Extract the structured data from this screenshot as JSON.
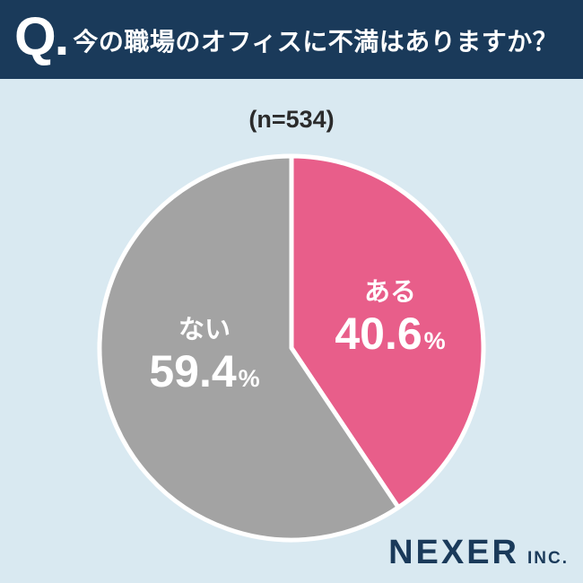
{
  "header": {
    "q_label": "Q.",
    "title": "今の職場のオフィスに不満はありますか？"
  },
  "chart_data": {
    "type": "pie",
    "title": "(n=534)",
    "start_angle_deg": 0,
    "direction": "clockwise",
    "percent_sign": "%",
    "slices": [
      {
        "label": "ある",
        "value": 40.6,
        "color": "#e85e8a"
      },
      {
        "label": "ない",
        "value": 59.4,
        "color": "#a3a3a3"
      }
    ],
    "gap_color": "#ffffff"
  },
  "footer": {
    "brand": "NEXER",
    "brand_suffix": "INC."
  }
}
